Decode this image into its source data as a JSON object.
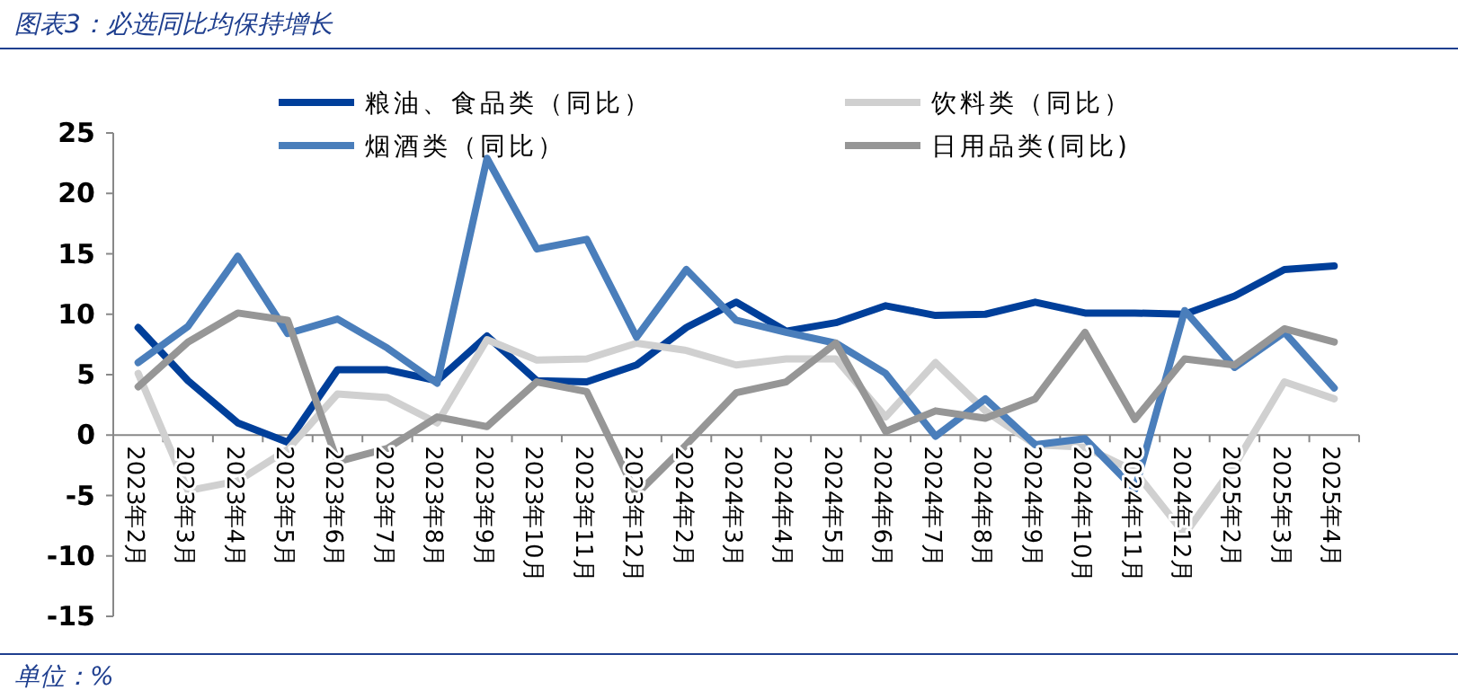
{
  "chart_data": {
    "type": "line",
    "title": "图表3：必选同比均保持增长",
    "annotations": [
      "单位：%"
    ],
    "categories": [
      "2023年2月",
      "2023年3月",
      "2023年4月",
      "2023年5月",
      "2023年6月",
      "2023年7月",
      "2023年8月",
      "2023年9月",
      "2023年10月",
      "2023年11月",
      "2023年12月",
      "2024年2月",
      "2024年3月",
      "2024年4月",
      "2024年5月",
      "2024年6月",
      "2024年7月",
      "2024年8月",
      "2024年9月",
      "2024年10月",
      "2024年11月",
      "2024年12月",
      "2025年2月",
      "2025年3月",
      "2025年4月"
    ],
    "series": [
      {
        "name": "粮油、食品类（同比）",
        "color": "#003f9a",
        "values": [
          8.9,
          4.5,
          1.0,
          -0.6,
          5.4,
          5.4,
          4.5,
          8.2,
          4.5,
          4.4,
          5.8,
          8.9,
          11.0,
          8.6,
          9.3,
          10.7,
          9.9,
          10.0,
          11.0,
          10.1,
          10.1,
          10.0,
          11.5,
          13.7,
          14.0
        ]
      },
      {
        "name": "饮料类（同比）",
        "color": "#d0d0d0",
        "values": [
          5.1,
          -4.6,
          -3.8,
          -1.2,
          3.4,
          3.1,
          1.0,
          7.9,
          6.2,
          6.3,
          7.6,
          7.0,
          5.8,
          6.3,
          6.3,
          1.5,
          6.0,
          2.0,
          -0.8,
          -1.0,
          -3.0,
          -8.2,
          -2.5,
          4.4,
          3.0
        ]
      },
      {
        "name": "烟酒类（同比）",
        "color": "#4a7ebb",
        "values": [
          6.0,
          9.0,
          14.8,
          8.4,
          9.6,
          7.2,
          4.3,
          22.9,
          15.4,
          16.2,
          8.1,
          13.7,
          9.5,
          8.5,
          7.6,
          5.1,
          -0.1,
          3.0,
          -0.8,
          -0.3,
          -4.5,
          10.3,
          5.6,
          8.5,
          3.9
        ]
      },
      {
        "name": "日用品类(同比)",
        "color": "#969696",
        "values": [
          4.0,
          7.7,
          10.1,
          9.5,
          -2.2,
          -1.1,
          1.5,
          0.7,
          4.4,
          3.6,
          -4.9,
          -0.8,
          3.5,
          4.4,
          7.6,
          0.3,
          2.0,
          1.4,
          3.0,
          8.5,
          1.3,
          6.3,
          5.8,
          8.8,
          7.7
        ]
      }
    ],
    "ylim": [
      -15,
      25
    ],
    "yticks": [
      -15,
      -10,
      -5,
      0,
      5,
      10,
      15,
      20,
      25
    ],
    "grid": false,
    "legend": "top",
    "marker": "none",
    "line_style": "solid"
  }
}
